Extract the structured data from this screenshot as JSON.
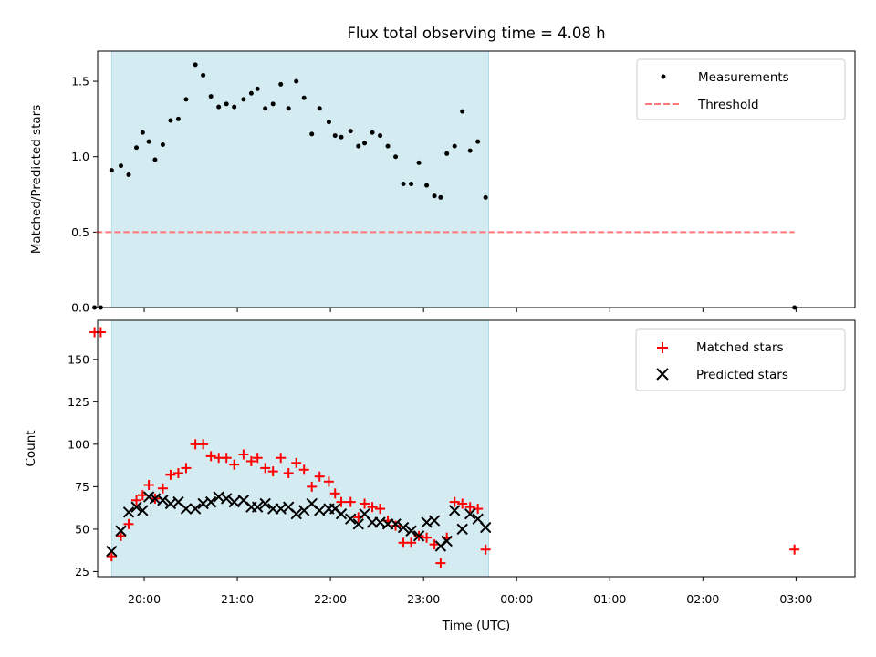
{
  "figure": {
    "title": "Flux total observing time = 4.08 h"
  },
  "chart_data": [
    {
      "type": "scatter",
      "panel": "top",
      "ylabel": "Matched/Predicted stars",
      "xlabel": "",
      "xlim": [
        "19:30",
        "03:38"
      ],
      "ylim": [
        0,
        1.7
      ],
      "yticks": [
        0.0,
        0.5,
        1.0,
        1.5
      ],
      "ytick_labels": [
        "0.0",
        "0.5",
        "1.0",
        "1.5"
      ],
      "grid": false,
      "legend_placement": "top-right",
      "shaded_interval": [
        "19:39",
        "23:42"
      ],
      "shaded_color": "#d4ebf1",
      "series": [
        {
          "name": "Measurements",
          "marker": "dot",
          "color": "#000000",
          "points": [
            [
              "19:28",
              0.0
            ],
            [
              "19:32",
              0.0
            ],
            [
              "19:39",
              0.91
            ],
            [
              "19:45",
              0.94
            ],
            [
              "19:50",
              0.88
            ],
            [
              "19:55",
              1.06
            ],
            [
              "19:59",
              1.16
            ],
            [
              "20:03",
              1.1
            ],
            [
              "20:07",
              0.98
            ],
            [
              "20:12",
              1.08
            ],
            [
              "20:17",
              1.24
            ],
            [
              "20:22",
              1.25
            ],
            [
              "20:27",
              1.38
            ],
            [
              "20:33",
              1.61
            ],
            [
              "20:38",
              1.54
            ],
            [
              "20:43",
              1.4
            ],
            [
              "20:48",
              1.33
            ],
            [
              "20:53",
              1.35
            ],
            [
              "20:58",
              1.33
            ],
            [
              "21:04",
              1.38
            ],
            [
              "21:09",
              1.42
            ],
            [
              "21:13",
              1.45
            ],
            [
              "21:18",
              1.32
            ],
            [
              "21:23",
              1.35
            ],
            [
              "21:28",
              1.48
            ],
            [
              "21:33",
              1.32
            ],
            [
              "21:38",
              1.5
            ],
            [
              "21:43",
              1.39
            ],
            [
              "21:48",
              1.15
            ],
            [
              "21:53",
              1.32
            ],
            [
              "21:59",
              1.23
            ],
            [
              "22:03",
              1.14
            ],
            [
              "22:07",
              1.13
            ],
            [
              "22:13",
              1.17
            ],
            [
              "22:18",
              1.07
            ],
            [
              "22:22",
              1.09
            ],
            [
              "22:27",
              1.16
            ],
            [
              "22:32",
              1.14
            ],
            [
              "22:37",
              1.07
            ],
            [
              "22:42",
              1.0
            ],
            [
              "22:47",
              0.82
            ],
            [
              "22:52",
              0.82
            ],
            [
              "22:57",
              0.96
            ],
            [
              "23:02",
              0.81
            ],
            [
              "23:07",
              0.74
            ],
            [
              "23:11",
              0.73
            ],
            [
              "23:15",
              1.02
            ],
            [
              "23:20",
              1.07
            ],
            [
              "23:25",
              1.3
            ],
            [
              "23:30",
              1.04
            ],
            [
              "23:35",
              1.1
            ],
            [
              "23:40",
              0.73
            ],
            [
              "02:59",
              0.0
            ]
          ]
        },
        {
          "name": "Threshold",
          "style": "dashed",
          "color": "#ff7777",
          "x": [
            "19:29",
            "02:59"
          ],
          "y": [
            0.5,
            0.5
          ]
        }
      ]
    },
    {
      "type": "scatter",
      "panel": "bottom",
      "xlabel": "Time (UTC)",
      "ylabel": "Count",
      "xlim": [
        "19:30",
        "03:38"
      ],
      "ylim": [
        22,
        173
      ],
      "xticks": [
        "20:00",
        "21:00",
        "22:00",
        "23:00",
        "00:00",
        "01:00",
        "02:00",
        "03:00"
      ],
      "yticks": [
        25,
        50,
        75,
        100,
        125,
        150
      ],
      "ytick_labels": [
        "25",
        "50",
        "75",
        "100",
        "125",
        "150"
      ],
      "grid": false,
      "legend_placement": "top-right",
      "shaded_interval": [
        "19:39",
        "23:42"
      ],
      "shaded_color": "#d4ebf1",
      "series": [
        {
          "name": "Matched stars",
          "marker": "plus",
          "color": "#ff0000",
          "points": [
            [
              "19:28",
              166
            ],
            [
              "19:32",
              166
            ],
            [
              "19:39",
              34
            ],
            [
              "19:45",
              46
            ],
            [
              "19:50",
              53
            ],
            [
              "19:55",
              67
            ],
            [
              "19:59",
              70
            ],
            [
              "20:03",
              76
            ],
            [
              "20:07",
              68
            ],
            [
              "20:12",
              74
            ],
            [
              "20:17",
              82
            ],
            [
              "20:22",
              83
            ],
            [
              "20:27",
              86
            ],
            [
              "20:33",
              100
            ],
            [
              "20:38",
              100
            ],
            [
              "20:43",
              93
            ],
            [
              "20:48",
              92
            ],
            [
              "20:53",
              92
            ],
            [
              "20:58",
              88
            ],
            [
              "21:04",
              94
            ],
            [
              "21:09",
              90
            ],
            [
              "21:13",
              92
            ],
            [
              "21:18",
              86
            ],
            [
              "21:23",
              84
            ],
            [
              "21:28",
              92
            ],
            [
              "21:33",
              83
            ],
            [
              "21:38",
              89
            ],
            [
              "21:43",
              85
            ],
            [
              "21:48",
              75
            ],
            [
              "21:53",
              81
            ],
            [
              "21:59",
              78
            ],
            [
              "22:03",
              71
            ],
            [
              "22:07",
              66
            ],
            [
              "22:13",
              66
            ],
            [
              "22:18",
              57
            ],
            [
              "22:22",
              65
            ],
            [
              "22:27",
              63
            ],
            [
              "22:32",
              62
            ],
            [
              "22:37",
              55
            ],
            [
              "22:42",
              52
            ],
            [
              "22:47",
              42
            ],
            [
              "22:52",
              42
            ],
            [
              "22:57",
              46
            ],
            [
              "23:02",
              45
            ],
            [
              "23:07",
              41
            ],
            [
              "23:11",
              30
            ],
            [
              "23:15",
              45
            ],
            [
              "23:20",
              66
            ],
            [
              "23:25",
              65
            ],
            [
              "23:30",
              63
            ],
            [
              "23:35",
              62
            ],
            [
              "23:40",
              38
            ],
            [
              "02:59",
              38
            ]
          ]
        },
        {
          "name": "Predicted stars",
          "marker": "x",
          "color": "#000000",
          "points": [
            [
              "19:39",
              37
            ],
            [
              "19:45",
              49
            ],
            [
              "19:50",
              60
            ],
            [
              "19:55",
              63
            ],
            [
              "19:59",
              61
            ],
            [
              "20:03",
              69
            ],
            [
              "20:07",
              68
            ],
            [
              "20:12",
              67
            ],
            [
              "20:17",
              65
            ],
            [
              "20:22",
              66
            ],
            [
              "20:27",
              62
            ],
            [
              "20:33",
              62
            ],
            [
              "20:38",
              65
            ],
            [
              "20:43",
              66
            ],
            [
              "20:48",
              69
            ],
            [
              "20:53",
              68
            ],
            [
              "20:58",
              66
            ],
            [
              "21:04",
              67
            ],
            [
              "21:09",
              63
            ],
            [
              "21:13",
              63
            ],
            [
              "21:18",
              65
            ],
            [
              "21:23",
              62
            ],
            [
              "21:28",
              62
            ],
            [
              "21:33",
              63
            ],
            [
              "21:38",
              59
            ],
            [
              "21:43",
              61
            ],
            [
              "21:48",
              65
            ],
            [
              "21:53",
              61
            ],
            [
              "21:59",
              62
            ],
            [
              "22:03",
              62
            ],
            [
              "22:07",
              59
            ],
            [
              "22:13",
              56
            ],
            [
              "22:18",
              53
            ],
            [
              "22:22",
              59
            ],
            [
              "22:27",
              54
            ],
            [
              "22:32",
              54
            ],
            [
              "22:37",
              53
            ],
            [
              "22:42",
              53
            ],
            [
              "22:47",
              51
            ],
            [
              "22:52",
              49
            ],
            [
              "22:57",
              46
            ],
            [
              "23:02",
              54
            ],
            [
              "23:07",
              55
            ],
            [
              "23:11",
              40
            ],
            [
              "23:15",
              43
            ],
            [
              "23:20",
              61
            ],
            [
              "23:25",
              50
            ],
            [
              "23:30",
              59
            ],
            [
              "23:35",
              56
            ],
            [
              "23:40",
              51
            ]
          ]
        }
      ]
    }
  ]
}
